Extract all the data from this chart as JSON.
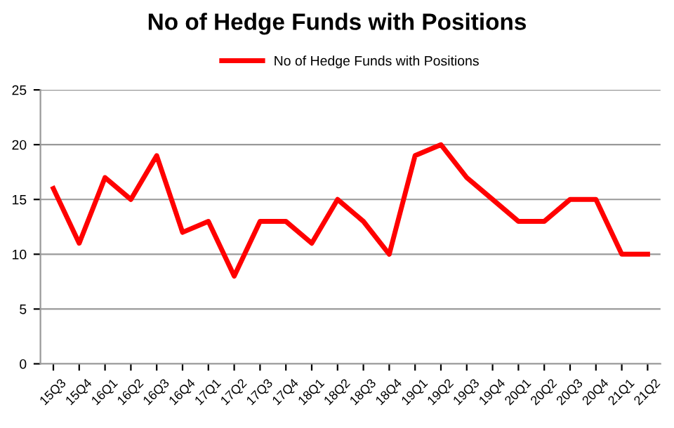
{
  "chart_data": {
    "type": "line",
    "title": "No of Hedge Funds with Positions",
    "categories": [
      "15Q3",
      "15Q4",
      "16Q1",
      "16Q2",
      "16Q3",
      "16Q4",
      "17Q1",
      "17Q2",
      "17Q3",
      "17Q4",
      "18Q1",
      "18Q2",
      "18Q3",
      "18Q4",
      "19Q1",
      "19Q2",
      "19Q3",
      "19Q4",
      "20Q1",
      "20Q2",
      "20Q3",
      "20Q4",
      "21Q1",
      "21Q2"
    ],
    "series": [
      {
        "name": "No of Hedge Funds with Positions",
        "color": "#ff0000",
        "values": [
          16,
          11,
          17,
          15,
          19,
          12,
          13,
          8,
          13,
          13,
          11,
          15,
          13,
          10,
          19,
          20,
          17,
          15,
          13,
          13,
          15,
          15,
          10,
          10
        ]
      }
    ],
    "ylim": [
      0,
      25
    ],
    "yticks": [
      0,
      5,
      10,
      15,
      20,
      25
    ],
    "grid": "y",
    "legend": "top",
    "marker": "none",
    "line_style": "solid"
  }
}
